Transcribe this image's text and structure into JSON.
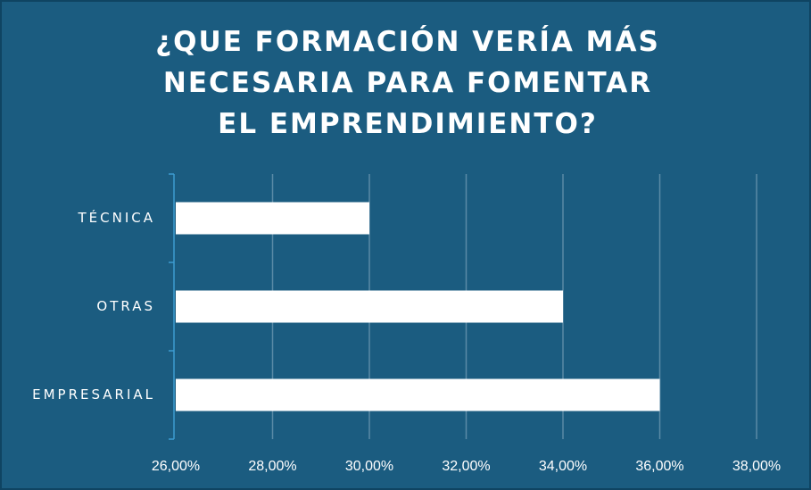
{
  "chart_data": {
    "type": "bar",
    "orientation": "horizontal",
    "title": "¿QUE FORMACIÓN VERÍA MÁS NECESARIA PARA FOMENTAR EL EMPRENDIMIENTO?",
    "categories": [
      "TÉCNICA",
      "OTRAS",
      "EMPRESARIAL"
    ],
    "values": [
      30,
      34,
      36
    ],
    "color": "#ffffff",
    "xlim": [
      26,
      38
    ],
    "xticks": [
      {
        "value": 26,
        "label": "26,00%"
      },
      {
        "value": 28,
        "label": "28,00%"
      },
      {
        "value": 30,
        "label": "30,00%"
      },
      {
        "value": 32,
        "label": "32,00%"
      },
      {
        "value": 34,
        "label": "34,00%"
      },
      {
        "value": 36,
        "label": "36,00%"
      },
      {
        "value": 38,
        "label": "38,00%"
      }
    ],
    "grid": true
  }
}
